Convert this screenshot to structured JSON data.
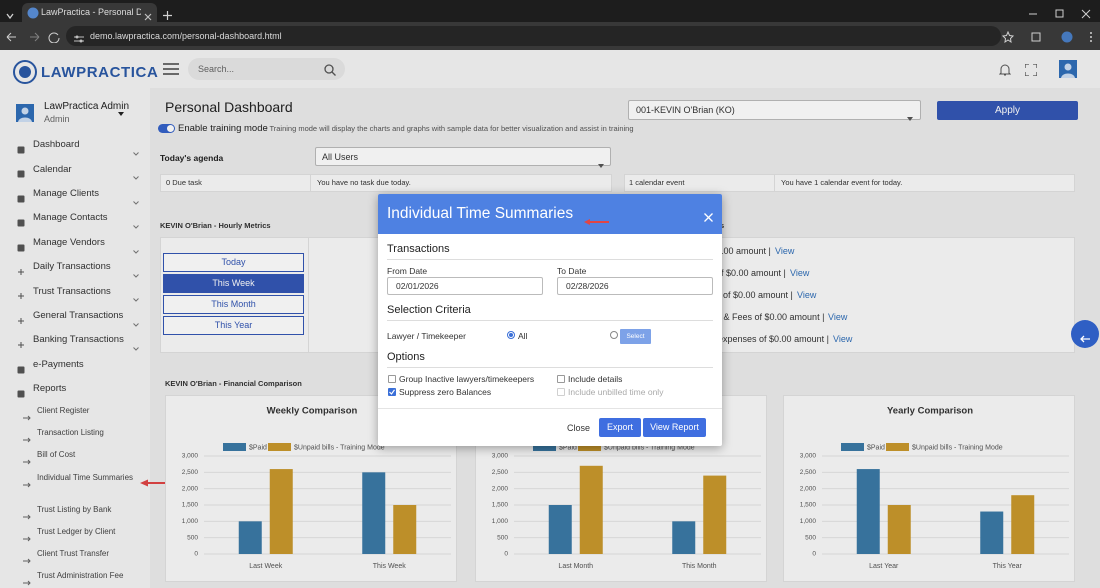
{
  "browser": {
    "tab_title": "LawPractica - Personal Dashbo",
    "url": "demo.lawpractica.com/personal-dashboard.html"
  },
  "header": {
    "logo": "LAWPRACTICA",
    "search_placeholder": "Search..."
  },
  "sidebar": {
    "user_name": "LawPractica Admin",
    "user_role": "Admin",
    "menu": [
      "Dashboard",
      "Calendar",
      "Manage Clients",
      "Manage Contacts",
      "Manage Vendors",
      "Daily Transactions",
      "Trust Transactions",
      "General Transactions",
      "Banking Transactions",
      "e-Payments",
      "Reports"
    ],
    "reports": [
      "Client Register",
      "Transaction Listing",
      "Bill of Cost",
      "Individual Time Summaries",
      "Trust Listing by Bank",
      "Trust Ledger by Client",
      "Client Trust Transfer",
      "Trust Administration Fee"
    ]
  },
  "dashboard": {
    "title": "Personal Dashboard",
    "lawyer_select": "001-KEVIN O'Brian (KO)",
    "apply": "Apply",
    "training_toggle": "Enable training mode",
    "training_note": "- Training mode will display the charts and graphs with sample data for better visualization and assist in training",
    "agenda_title": "Today's agenda",
    "users_select": "All Users",
    "due_task": "0 Due task",
    "no_task": "You have no task due today.",
    "calendar_event": "1 calendar event",
    "calendar_note": "You have 1 calendar event for today.",
    "hourly_title": "KEVIN O'Brian - Hourly Metrics",
    "periods": [
      "Today",
      "This Week",
      "This Month",
      "This Year"
    ],
    "active_period": 1,
    "metrics_heading": "s",
    "metrics": [
      {
        "text": "0.00 amount |",
        "link": "View"
      },
      {
        "text": "of $0.00 amount |",
        "link": "View"
      },
      {
        "text": "s of $0.00 amount |",
        "link": "View"
      },
      {
        "text": "e & Fees of $0.00 amount |",
        "link": "View"
      },
      {
        "text": "nt expenses of $0.00 amount |",
        "link": "View"
      }
    ],
    "financial_title": "KEVIN O'Brian - Financial Comparison"
  },
  "chart_data": [
    {
      "type": "bar",
      "title": "Weekly Comparison",
      "categories": [
        "Last Week",
        "This Week"
      ],
      "series": [
        {
          "name": "$Paid bills",
          "color": "#3b7aa6",
          "values": [
            1000,
            2500
          ]
        },
        {
          "name": "$Unpaid bills - Training Mode",
          "color": "#c9982c",
          "values": [
            2600,
            1500
          ]
        }
      ],
      "ylim": [
        0,
        3000
      ],
      "yticks": [
        0,
        500,
        {
          "value": 1000,
          "label": "1,000"
        },
        {
          "value": 1500,
          "label": "1,500"
        },
        {
          "value": 2000,
          "label": "2,000"
        },
        {
          "value": 2500,
          "label": "2,500"
        },
        {
          "value": 3000,
          "label": "3,000"
        }
      ]
    },
    {
      "type": "bar",
      "categories": [
        "Last Month",
        "This Month"
      ],
      "series": [
        {
          "name": "$Paid bills",
          "color": "#3b7aa6",
          "values": [
            1500,
            1000
          ]
        },
        {
          "name": "$Unpaid bills - Training Mode",
          "color": "#c9982c",
          "values": [
            2700,
            2400
          ]
        }
      ],
      "ylim": [
        0,
        3000
      ],
      "yticks": [
        0,
        500,
        {
          "value": 1000,
          "label": "1,000"
        },
        {
          "value": 1500,
          "label": "1,500"
        },
        {
          "value": 2000,
          "label": "2,000"
        },
        {
          "value": 2500,
          "label": "2,500"
        },
        {
          "value": 3000,
          "label": "3,000"
        }
      ]
    },
    {
      "type": "bar",
      "title": "Yearly Comparison",
      "categories": [
        "Last Year",
        "This Year"
      ],
      "series": [
        {
          "name": "$Paid bills",
          "color": "#3b7aa6",
          "values": [
            2600,
            1300
          ]
        },
        {
          "name": "$Unpaid bills - Training Mode",
          "color": "#c9982c",
          "values": [
            1500,
            1800
          ]
        }
      ],
      "ylim": [
        0,
        3000
      ],
      "yticks": [
        0,
        500,
        {
          "value": 1000,
          "label": "1,000"
        },
        {
          "value": 1500,
          "label": "1,500"
        },
        {
          "value": 2000,
          "label": "2,000"
        },
        {
          "value": 2500,
          "label": "2,500"
        },
        {
          "value": 3000,
          "label": "3,000"
        }
      ]
    }
  ],
  "modal": {
    "title": "Individual Time Summaries",
    "transactions": "Transactions",
    "from_label": "From Date",
    "from_value": "02/01/2026",
    "to_label": "To Date",
    "to_value": "02/28/2026",
    "criteria": "Selection Criteria",
    "lawyer_label": "Lawyer / Timekeeper",
    "radio_all": "All",
    "all_selected": true,
    "select_button": "Select",
    "options": "Options",
    "checkboxes": [
      {
        "label": "Group Inactive lawyers/timekeepers",
        "checked": false,
        "disabled": false
      },
      {
        "label": "Suppress zero Balances",
        "checked": true,
        "disabled": false
      },
      {
        "label": "Include details",
        "checked": false,
        "disabled": false
      },
      {
        "label": "Include unbilled time only",
        "checked": false,
        "disabled": true
      }
    ],
    "close": "Close",
    "export": "Export",
    "view_report": "View Report"
  }
}
